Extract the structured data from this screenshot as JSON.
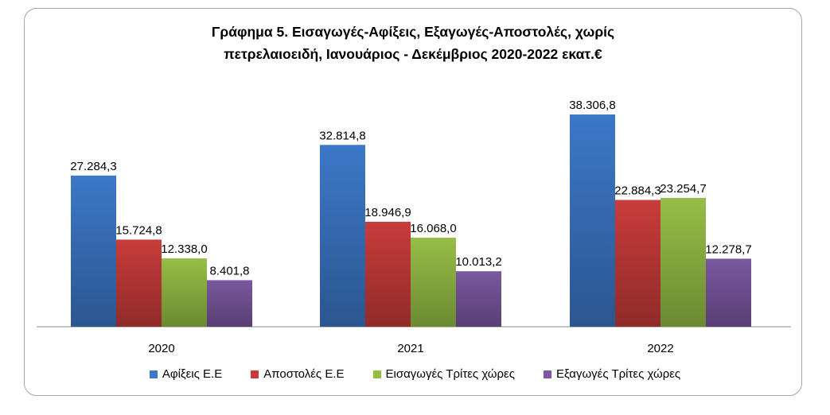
{
  "chart_data": {
    "type": "bar",
    "title_line1": "Γράφημα 5. Εισαγωγές-Αφίξεις, Εξαγωγές-Αποστολές, χωρίς",
    "title_line2": "πετρελαιοειδή, Ιανουάριος - Δεκέμβριος 2020-2022 εκατ.€",
    "categories": [
      "2020",
      "2021",
      "2022"
    ],
    "series": [
      {
        "name": "Αφίξεις Ε.Ε",
        "color": "#3c78c8",
        "values": [
          27284.3,
          32814.8,
          38306.8
        ],
        "labels": [
          "27.284,3",
          "32.814,8",
          "38.306,8"
        ]
      },
      {
        "name": "Αποστολές  Ε.Ε",
        "color": "#c83c3a",
        "values": [
          15724.8,
          18946.9,
          22884.3
        ],
        "labels": [
          "15.724,8",
          "18.946,9",
          "22.884,3"
        ]
      },
      {
        "name": "Εισαγωγές Τρίτες χώρες",
        "color": "#96be46",
        "values": [
          12338.0,
          16068.0,
          23254.7
        ],
        "labels": [
          "12.338,0",
          "16.068,0",
          "23.254,7"
        ]
      },
      {
        "name": "Εξαγωγές Τρίτες χώρες",
        "color": "#7a57a0",
        "values": [
          8401.8,
          10013.2,
          12278.7
        ],
        "labels": [
          "8.401,8",
          "10.013,2",
          "12.278,7"
        ]
      }
    ],
    "ylim": [
      0,
      38306.8
    ],
    "grid": false,
    "legend": "bottom"
  }
}
